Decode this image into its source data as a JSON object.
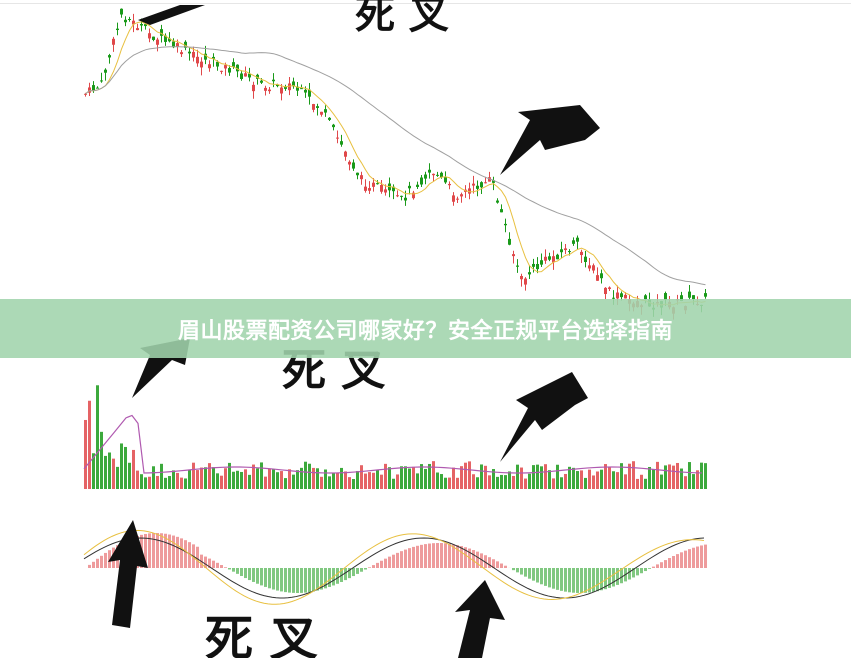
{
  "article": {
    "title": "眉山股票配资公司哪家好？安全正规平台选择指南"
  },
  "chart_data": {
    "type": "candlestick",
    "panels": [
      "price",
      "volume",
      "macd"
    ],
    "annotations": [
      "死 叉",
      "死 叉",
      "死 叉"
    ],
    "grid": false,
    "colors": {
      "up": "#e0484a",
      "down": "#1a9a1a",
      "ma_short": "#e8c040",
      "ma_mid": "#b05ab0",
      "ma_long": "#a0a0a0",
      "arrow": "#111111",
      "banner": "#a0d4ac"
    }
  }
}
